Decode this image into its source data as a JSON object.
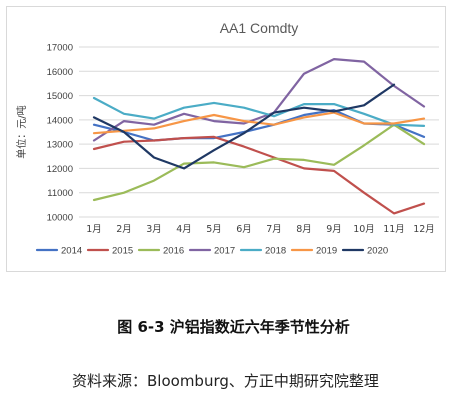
{
  "chart_data": {
    "type": "line",
    "title": "AA1 Comdty",
    "ylabel": "单位：元/吨",
    "xlabel": "",
    "categories": [
      "1月",
      "2月",
      "3月",
      "4月",
      "5月",
      "6月",
      "7月",
      "8月",
      "9月",
      "10月",
      "11月",
      "12月"
    ],
    "ylim": [
      10000,
      17000
    ],
    "yticks": [
      10000,
      11000,
      12000,
      13000,
      14000,
      15000,
      16000,
      17000
    ],
    "grid": true,
    "legend_position": "bottom",
    "series": [
      {
        "name": "2014",
        "color": "#4472c4",
        "values": [
          13800,
          13500,
          13150,
          13250,
          13250,
          13500,
          13800,
          14200,
          14400,
          13850,
          13800,
          13300
        ]
      },
      {
        "name": "2015",
        "color": "#c0504d",
        "values": [
          12800,
          13100,
          13150,
          13250,
          13300,
          12900,
          12450,
          12000,
          11900,
          11000,
          10150,
          10550
        ]
      },
      {
        "name": "2016",
        "color": "#9bbb59",
        "values": [
          10700,
          11000,
          11500,
          12200,
          12250,
          12050,
          12400,
          12350,
          12150,
          12950,
          13800,
          13000
        ]
      },
      {
        "name": "2017",
        "color": "#8064a2",
        "values": [
          13150,
          13950,
          13800,
          14250,
          13950,
          13850,
          14300,
          15900,
          16500,
          16400,
          15400,
          14550
        ]
      },
      {
        "name": "2018",
        "color": "#4bacc6",
        "values": [
          14900,
          14250,
          14050,
          14500,
          14700,
          14500,
          14150,
          14650,
          14650,
          14250,
          13800,
          13750
        ]
      },
      {
        "name": "2019",
        "color": "#f79646",
        "values": [
          13450,
          13550,
          13650,
          13950,
          14200,
          13950,
          13800,
          14100,
          14300,
          13850,
          13850,
          14050
        ]
      },
      {
        "name": "2020",
        "color": "#1f3864",
        "values": [
          14100,
          13500,
          12450,
          12000,
          12750,
          13450,
          14300,
          14500,
          14350,
          14600,
          15450,
          null
        ]
      }
    ]
  },
  "caption": "图 6-3  沪铝指数近六年季节性分析",
  "source": "资料来源：Bloomburg、方正中期研究院整理"
}
